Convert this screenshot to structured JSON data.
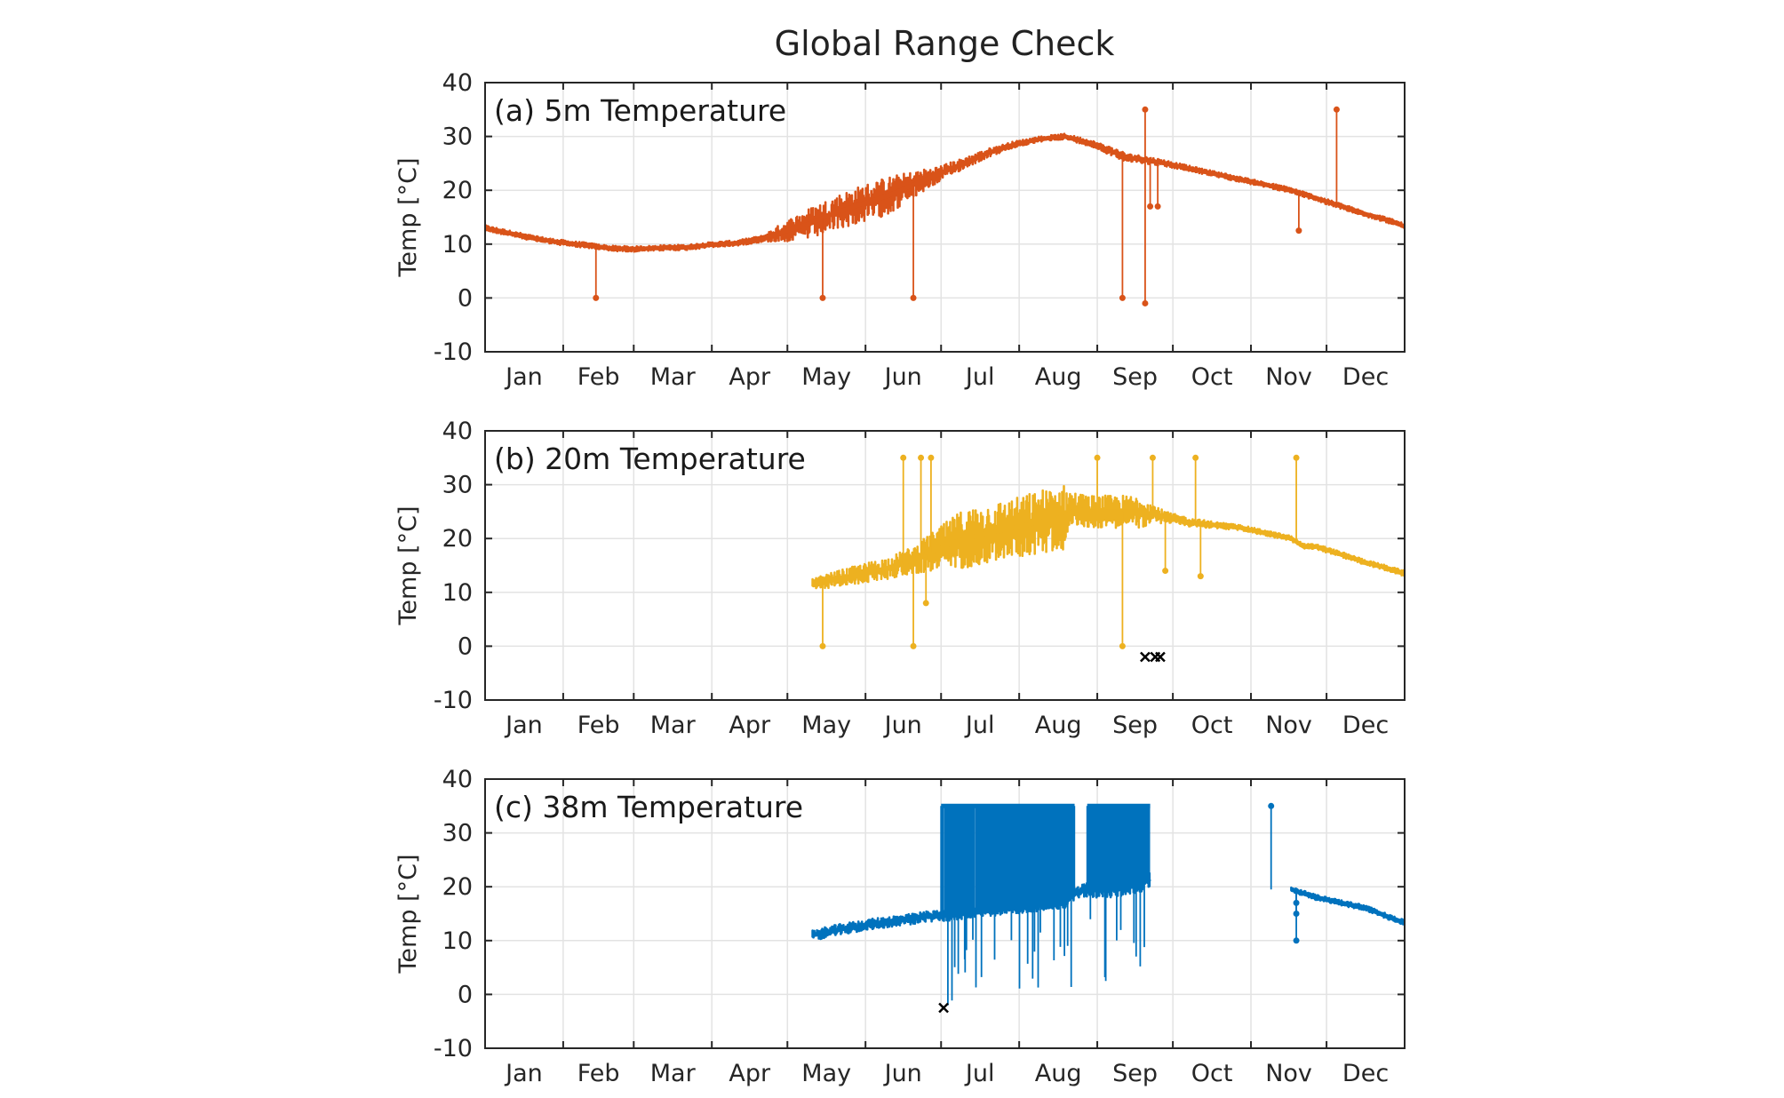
{
  "figure": {
    "title": "Global Range Check"
  },
  "colors": {
    "panel_a": "#d95319",
    "panel_b": "#edb120",
    "panel_c": "#0072bd",
    "flag": "#000000"
  },
  "chart_data": [
    {
      "type": "line",
      "title": "(a) 5m Temperature",
      "ylabel": "Temp [°C]",
      "xlabel": "",
      "month_labels": [
        "Jan",
        "Feb",
        "Mar",
        "Apr",
        "May",
        "Jun",
        "Jul",
        "Aug",
        "Sep",
        "Oct",
        "Nov",
        "Dec"
      ],
      "y_ticks": [
        40,
        30,
        20,
        10,
        0,
        -10
      ],
      "xlim": [
        0,
        365
      ],
      "ylim": [
        -10,
        40
      ],
      "grid": true,
      "series": [
        {
          "color": "#d95319",
          "x": [
            0,
            10,
            20,
            30,
            40,
            50,
            60,
            70,
            80,
            90,
            100,
            110,
            120,
            130,
            140,
            150,
            160,
            170,
            180,
            190,
            200,
            210,
            220,
            230,
            240,
            250,
            255,
            260,
            270,
            280,
            290,
            300,
            310,
            320,
            330,
            340,
            350,
            358,
            365
          ],
          "y": [
            13,
            12,
            11,
            10.3,
            9.8,
            9.2,
            9.1,
            9.3,
            9.4,
            9.9,
            10.2,
            11,
            12.5,
            14,
            16,
            17.5,
            19,
            21,
            23,
            25,
            27,
            28.5,
            29.5,
            30,
            28.8,
            27,
            26,
            25.8,
            25,
            24,
            23,
            22,
            21,
            20,
            18.5,
            17,
            15.5,
            14.5,
            13.3
          ],
          "band": [
            0.5,
            0.5,
            0.5,
            0.5,
            0.5,
            0.5,
            0.5,
            0.5,
            0.5,
            0.5,
            0.5,
            0.6,
            2,
            3,
            3.2,
            3.5,
            3.5,
            2.5,
            1.5,
            1,
            0.8,
            0.6,
            0.5,
            0.5,
            0.6,
            0.8,
            0.8,
            0.7,
            0.6,
            0.5,
            0.5,
            0.5,
            0.5,
            0.5,
            0.5,
            0.5,
            0.5,
            0.5,
            0.5
          ],
          "outliers": [
            [
              44,
              0
            ],
            [
              134,
              0
            ],
            [
              170,
              0
            ],
            [
              253,
              0
            ],
            [
              262,
              -1
            ],
            [
              262,
              35
            ],
            [
              264,
              17
            ],
            [
              267,
              17
            ],
            [
              338,
              35
            ],
            [
              323,
              12.5
            ]
          ]
        }
      ]
    },
    {
      "type": "line",
      "title": "(b) 20m Temperature",
      "ylabel": "Temp [°C]",
      "xlabel": "",
      "month_labels": [
        "Jan",
        "Feb",
        "Mar",
        "Apr",
        "May",
        "Jun",
        "Jul",
        "Aug",
        "Sep",
        "Oct",
        "Nov",
        "Dec"
      ],
      "y_ticks": [
        40,
        30,
        20,
        10,
        0,
        -10
      ],
      "xlim": [
        0,
        365
      ],
      "ylim": [
        -10,
        40
      ],
      "grid": true,
      "series": [
        {
          "color": "#edb120",
          "x": [
            130,
            140,
            150,
            160,
            170,
            180,
            190,
            200,
            210,
            220,
            230,
            235,
            240,
            250,
            260,
            270,
            280,
            290,
            300,
            310,
            320,
            325,
            330,
            340,
            350,
            358,
            365
          ],
          "y": [
            11.5,
            12.5,
            13.5,
            14.5,
            16,
            18,
            20,
            21,
            22,
            23,
            24,
            25.5,
            25,
            25,
            25,
            24,
            23,
            22.5,
            22,
            21,
            20,
            18.5,
            18.5,
            17,
            15.5,
            14.5,
            13.5
          ],
          "band": [
            1,
            1.5,
            1.8,
            2,
            2.5,
            4,
            5.5,
            5.5,
            5.5,
            6,
            6,
            3,
            3,
            3,
            3,
            1,
            0.8,
            0.6,
            0.5,
            0.5,
            0.5,
            0.5,
            0.5,
            0.5,
            0.5,
            0.5,
            0.5
          ],
          "outliers": [
            [
              134,
              0
            ],
            [
              166,
              35
            ],
            [
              170,
              0
            ],
            [
              173,
              35
            ],
            [
              175,
              8
            ],
            [
              177,
              35
            ],
            [
              243,
              35
            ],
            [
              253,
              0
            ],
            [
              265,
              35
            ],
            [
              270,
              14
            ],
            [
              282,
              35
            ],
            [
              284,
              13
            ],
            [
              322,
              35
            ]
          ]
        }
      ],
      "flags": [
        [
          262,
          -2
        ],
        [
          266,
          -2
        ],
        [
          268,
          -2
        ]
      ]
    },
    {
      "type": "line",
      "title": "(c) 38m Temperature",
      "ylabel": "Temp [°C]",
      "xlabel": "",
      "month_labels": [
        "Jan",
        "Feb",
        "Mar",
        "Apr",
        "May",
        "Jun",
        "Jul",
        "Aug",
        "Sep",
        "Oct",
        "Nov",
        "Dec"
      ],
      "y_ticks": [
        40,
        30,
        20,
        10,
        0,
        -10
      ],
      "xlim": [
        0,
        365
      ],
      "ylim": [
        -10,
        40
      ],
      "grid": true,
      "series": [
        {
          "color": "#0072bd",
          "x": [
            130,
            140,
            150,
            160,
            170,
            175,
            180,
            190,
            200,
            210,
            220,
            230,
            235,
            240,
            250,
            260,
            264
          ],
          "y": [
            11,
            12,
            12.8,
            13.5,
            14,
            14.5,
            14.5,
            15,
            15.5,
            16,
            16.5,
            17,
            19,
            19.5,
            19.5,
            20.5,
            21.5
          ],
          "band": [
            1,
            1,
            1,
            1,
            1,
            1,
            1,
            1,
            1,
            1,
            1,
            1,
            1,
            1.5,
            1.5,
            1.5,
            1.5
          ],
          "bursts": [
            [
              181,
              234
            ],
            [
              239,
              264
            ]
          ],
          "burst_max": 35
        },
        {
          "color": "#0072bd",
          "x": [
            320,
            330,
            340,
            350,
            358,
            365
          ],
          "y": [
            19.5,
            18,
            17,
            16,
            14.5,
            13.3
          ],
          "band": [
            0.5,
            0.5,
            0.5,
            0.5,
            0.5,
            0.5
          ],
          "outliers": [
            [
              312,
              35
            ],
            [
              322,
              15
            ],
            [
              322,
              10
            ],
            [
              322,
              17
            ]
          ]
        }
      ],
      "flags": [
        [
          182,
          -2.5
        ]
      ]
    }
  ]
}
